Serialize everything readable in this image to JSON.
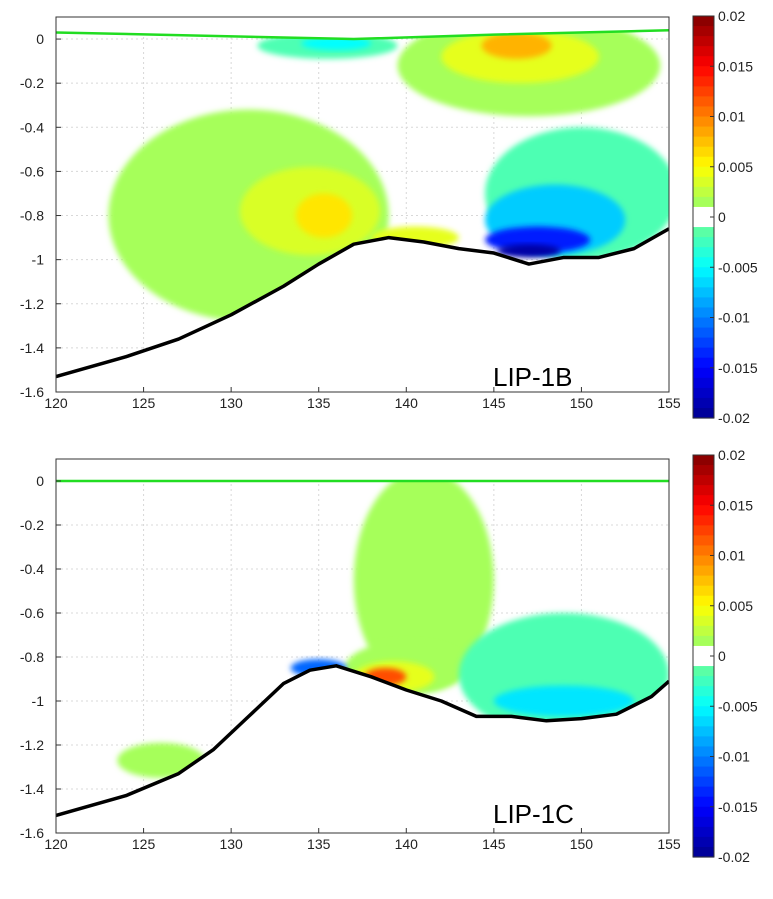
{
  "colors": {
    "bathymetry": "#000000",
    "surface": "#22dd22",
    "colormap": [
      "#00008f",
      "#0000ff",
      "#0080ff",
      "#00ffff",
      "#80ff80",
      "#ffff00",
      "#ff8000",
      "#ff0000",
      "#800000"
    ],
    "mask": "#ffffff"
  },
  "colorbar": {
    "range": [
      -0.02,
      0.02
    ],
    "white_band": [
      -0.001,
      0.001
    ],
    "ticks": [
      {
        "value": 0.02,
        "label": "0.02"
      },
      {
        "value": 0.015,
        "label": "0.015"
      },
      {
        "value": 0.01,
        "label": "0.01"
      },
      {
        "value": 0.005,
        "label": "0.005"
      },
      {
        "value": 0,
        "label": "0"
      },
      {
        "value": -0.005,
        "label": "-0.005"
      },
      {
        "value": -0.01,
        "label": "-0.01"
      },
      {
        "value": -0.015,
        "label": "-0.015"
      },
      {
        "value": -0.02,
        "label": "-0.02"
      }
    ]
  },
  "chart_data": [
    {
      "type": "heatmap",
      "annotation": "LIP-1B",
      "xlim": [
        120,
        155
      ],
      "ylim": [
        -1.6,
        0.1
      ],
      "x_ticks": [
        {
          "value": 120,
          "label": "120"
        },
        {
          "value": 125,
          "label": "125"
        },
        {
          "value": 130,
          "label": "130"
        },
        {
          "value": 135,
          "label": "135"
        },
        {
          "value": 140,
          "label": "140"
        },
        {
          "value": 145,
          "label": "145"
        },
        {
          "value": 150,
          "label": "150"
        },
        {
          "value": 155,
          "label": "155"
        }
      ],
      "y_ticks": [
        {
          "value": 0,
          "label": "0"
        },
        {
          "value": -0.2,
          "label": "-0.2"
        },
        {
          "value": -0.4,
          "label": "-0.4"
        },
        {
          "value": -0.6,
          "label": "-0.6"
        },
        {
          "value": -0.8,
          "label": "-0.8"
        },
        {
          "value": -1,
          "label": "-1"
        },
        {
          "value": -1.2,
          "label": "-1.2"
        },
        {
          "value": -1.4,
          "label": "-1.4"
        },
        {
          "value": -1.6,
          "label": "-1.6"
        }
      ],
      "grid": true,
      "bathymetry": [
        [
          120,
          -1.53
        ],
        [
          124,
          -1.44
        ],
        [
          127,
          -1.36
        ],
        [
          130,
          -1.25
        ],
        [
          133,
          -1.12
        ],
        [
          135,
          -1.02
        ],
        [
          137,
          -0.93
        ],
        [
          139,
          -0.9
        ],
        [
          141,
          -0.92
        ],
        [
          143,
          -0.95
        ],
        [
          145,
          -0.97
        ],
        [
          147,
          -1.02
        ],
        [
          149,
          -0.99
        ],
        [
          151,
          -0.99
        ],
        [
          153,
          -0.95
        ],
        [
          155,
          -0.86
        ]
      ],
      "surface": [
        [
          120,
          0.03
        ],
        [
          137,
          0.0
        ],
        [
          145,
          0.02
        ],
        [
          155,
          0.04
        ]
      ],
      "blobs": [
        {
          "value": 0.0015,
          "cx": 131,
          "cy": -0.8,
          "rx": 8,
          "ry": 0.48
        },
        {
          "value": 0.0035,
          "cx": 134.5,
          "cy": -0.78,
          "rx": 4,
          "ry": 0.2
        },
        {
          "value": 0.006,
          "cx": 135.3,
          "cy": -0.8,
          "rx": 1.6,
          "ry": 0.1
        },
        {
          "value": 0.004,
          "cx": 140.5,
          "cy": -0.9,
          "rx": 2.5,
          "ry": 0.05
        },
        {
          "value": 0.0015,
          "cx": 147,
          "cy": -0.12,
          "rx": 7.5,
          "ry": 0.23
        },
        {
          "value": 0.004,
          "cx": 146.5,
          "cy": -0.08,
          "rx": 4.5,
          "ry": 0.12
        },
        {
          "value": 0.008,
          "cx": 146.3,
          "cy": -0.03,
          "rx": 2,
          "ry": 0.06
        },
        {
          "value": -0.002,
          "cx": 135.5,
          "cy": -0.03,
          "rx": 4,
          "ry": 0.06
        },
        {
          "value": -0.005,
          "cx": 136,
          "cy": -0.02,
          "rx": 2,
          "ry": 0.03
        },
        {
          "value": -0.002,
          "cx": 150,
          "cy": -0.7,
          "rx": 5.5,
          "ry": 0.3
        },
        {
          "value": -0.007,
          "cx": 148.5,
          "cy": -0.82,
          "rx": 4,
          "ry": 0.16
        },
        {
          "value": -0.014,
          "cx": 147.5,
          "cy": -0.91,
          "rx": 3,
          "ry": 0.06
        },
        {
          "value": -0.019,
          "cx": 147,
          "cy": -0.96,
          "rx": 1.8,
          "ry": 0.03
        }
      ]
    },
    {
      "type": "heatmap",
      "annotation": "LIP-1C",
      "xlim": [
        120,
        155
      ],
      "ylim": [
        -1.6,
        0.1
      ],
      "x_ticks": [
        {
          "value": 120,
          "label": "120"
        },
        {
          "value": 125,
          "label": "125"
        },
        {
          "value": 130,
          "label": "130"
        },
        {
          "value": 135,
          "label": "135"
        },
        {
          "value": 140,
          "label": "140"
        },
        {
          "value": 145,
          "label": "145"
        },
        {
          "value": 150,
          "label": "150"
        },
        {
          "value": 155,
          "label": "155"
        }
      ],
      "y_ticks": [
        {
          "value": 0,
          "label": "0"
        },
        {
          "value": -0.2,
          "label": "-0.2"
        },
        {
          "value": -0.4,
          "label": "-0.4"
        },
        {
          "value": -0.6,
          "label": "-0.6"
        },
        {
          "value": -0.8,
          "label": "-0.8"
        },
        {
          "value": -1,
          "label": "-1"
        },
        {
          "value": -1.2,
          "label": "-1.2"
        },
        {
          "value": -1.4,
          "label": "-1.4"
        },
        {
          "value": -1.6,
          "label": "-1.6"
        }
      ],
      "grid": true,
      "bathymetry": [
        [
          120,
          -1.52
        ],
        [
          124,
          -1.43
        ],
        [
          127,
          -1.33
        ],
        [
          129,
          -1.22
        ],
        [
          131,
          -1.07
        ],
        [
          133,
          -0.92
        ],
        [
          134.5,
          -0.86
        ],
        [
          136,
          -0.84
        ],
        [
          138,
          -0.89
        ],
        [
          140,
          -0.95
        ],
        [
          142,
          -1.0
        ],
        [
          144,
          -1.07
        ],
        [
          146,
          -1.07
        ],
        [
          148,
          -1.09
        ],
        [
          150,
          -1.08
        ],
        [
          152,
          -1.06
        ],
        [
          154,
          -0.98
        ],
        [
          155,
          -0.91
        ]
      ],
      "surface": [
        [
          120,
          0.0
        ],
        [
          155,
          0.0
        ]
      ],
      "blobs": [
        {
          "value": 0.0015,
          "cx": 141,
          "cy": -0.45,
          "rx": 4,
          "ry": 0.5
        },
        {
          "value": 0.0015,
          "cx": 140,
          "cy": -0.85,
          "rx": 3.5,
          "ry": 0.12
        },
        {
          "value": 0.004,
          "cx": 139.3,
          "cy": -0.89,
          "rx": 2.3,
          "ry": 0.07
        },
        {
          "value": 0.012,
          "cx": 138.8,
          "cy": -0.89,
          "rx": 1.2,
          "ry": 0.04
        },
        {
          "value": -0.002,
          "cx": 149,
          "cy": -0.88,
          "rx": 6,
          "ry": 0.28
        },
        {
          "value": -0.006,
          "cx": 149,
          "cy": -1.0,
          "rx": 4,
          "ry": 0.07
        },
        {
          "value": -0.011,
          "cx": 135,
          "cy": -0.85,
          "rx": 1.6,
          "ry": 0.04
        },
        {
          "value": 0.0015,
          "cx": 126,
          "cy": -1.27,
          "rx": 2.5,
          "ry": 0.08
        }
      ]
    }
  ]
}
